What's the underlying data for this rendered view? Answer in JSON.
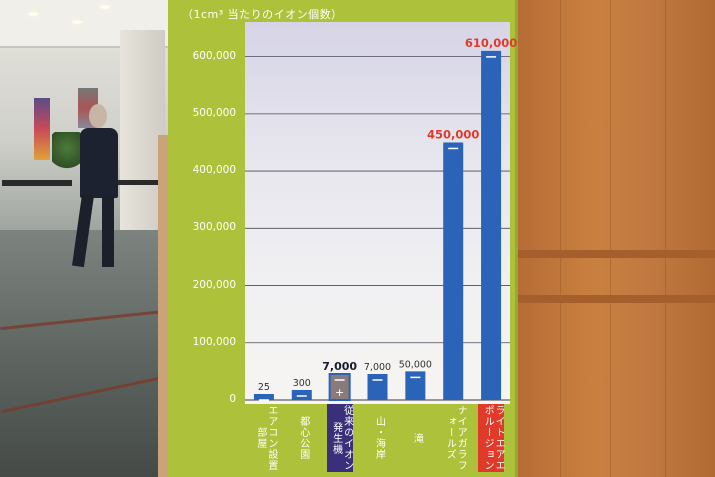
{
  "chart_data": {
    "type": "bar",
    "title": "（1cm³ 当たりのイオン個数）",
    "categories": [
      "エアコン設置部屋",
      "都心公園",
      "従来のイオン発生機",
      "山・海岸",
      "滝",
      "ナイアガラフォールズ",
      "ライトエアエポルージョン"
    ],
    "label_lines": [
      [
        "エアコン",
        "設置部屋"
      ],
      [
        "都心公園"
      ],
      [
        "従来のイオン",
        "発生機"
      ],
      [
        "山・海岸"
      ],
      [
        "滝"
      ],
      [
        "ナイアガラ",
        "フォールズ"
      ],
      [
        "ライトエア",
        "エポルージョン"
      ]
    ],
    "values": [
      25,
      300,
      7000,
      7000,
      50000,
      450000,
      610000
    ],
    "data_labels": [
      "25",
      "300",
      "7,000",
      "7,000",
      "50,000",
      "450,000",
      "610,000"
    ],
    "y_ticks": [
      "0",
      "100,000",
      "200,000",
      "300,000",
      "400,000",
      "500,000",
      "600,000"
    ],
    "y_tick_values": [
      0,
      100000,
      200000,
      300000,
      400000,
      500000,
      600000
    ],
    "ylim": [
      0,
      650000
    ],
    "grid": true,
    "colors": {
      "bar": "#2a63b8",
      "highlight_bar_fill": "#8a7a7a",
      "board": "#adc23a",
      "label_conventional_bg": "#3a2f7a",
      "label_product_bg": "#e03a2a",
      "value_highlight": "#e03a2a",
      "value_bold": "#1a1a2a",
      "value_plain": "#333333"
    }
  }
}
